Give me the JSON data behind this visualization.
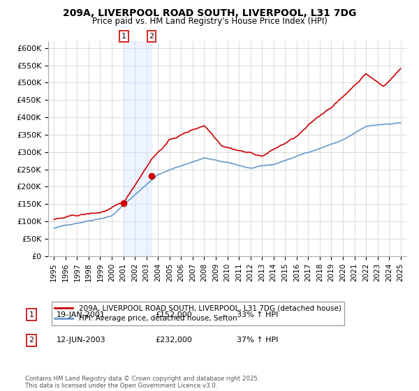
{
  "title": "209A, LIVERPOOL ROAD SOUTH, LIVERPOOL, L31 7DG",
  "subtitle": "Price paid vs. HM Land Registry's House Price Index (HPI)",
  "legend_line1": "209A, LIVERPOOL ROAD SOUTH, LIVERPOOL, L31 7DG (detached house)",
  "legend_line2": "HPI: Average price, detached house, Sefton",
  "sale1_label": "1",
  "sale1_date": "19-JAN-2001",
  "sale1_price": "£152,000",
  "sale1_hpi": "33% ↑ HPI",
  "sale2_label": "2",
  "sale2_date": "12-JUN-2003",
  "sale2_price": "£232,000",
  "sale2_hpi": "37% ↑ HPI",
  "copyright": "Contains HM Land Registry data © Crown copyright and database right 2025.\nThis data is licensed under the Open Government Licence v3.0.",
  "red_color": "#cc0000",
  "blue_color": "#6699cc",
  "shaded_color": "#cce0ff",
  "background_color": "#ffffff",
  "grid_color": "#cccccc",
  "ylim": [
    0,
    620000
  ],
  "yticks": [
    0,
    50000,
    100000,
    150000,
    200000,
    250000,
    300000,
    350000,
    400000,
    450000,
    500000,
    550000,
    600000
  ]
}
